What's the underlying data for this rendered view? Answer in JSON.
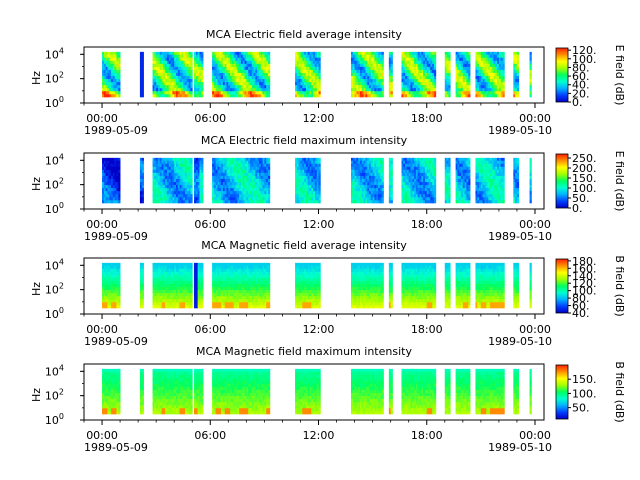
{
  "figure": {
    "panels": [
      {
        "title": "MCA  Electric field average intensity",
        "ylabel": "Hz",
        "cbar_label": "E field (dB)",
        "cbar_ticks": [
          "0.",
          "20.",
          "40.",
          "60.",
          "80.",
          "100.",
          "120."
        ],
        "cbar_range": [
          0,
          125
        ],
        "variant": "e_avg"
      },
      {
        "title": "MCA  Electric field maximum intensity",
        "ylabel": "Hz",
        "cbar_label": "E field (dB)",
        "cbar_ticks": [
          "0.",
          "50.",
          "100.",
          "150.",
          "200.",
          "250."
        ],
        "cbar_range": [
          0,
          270
        ],
        "variant": "e_max"
      },
      {
        "title": "MCA  Magnetic field average intensity",
        "ylabel": "Hz",
        "cbar_label": "B field (dB)",
        "cbar_ticks": [
          "40.",
          "60.",
          "80.",
          "100.",
          "120.",
          "140.",
          "160.",
          "180."
        ],
        "cbar_range": [
          40,
          185
        ],
        "variant": "b_avg"
      },
      {
        "title": "MCA  Magnetic field maximum intensity",
        "ylabel": "Hz",
        "cbar_label": "B field (dB)",
        "cbar_ticks": [
          "50.",
          "100.",
          "150."
        ],
        "cbar_range": [
          10,
          200
        ],
        "variant": "b_max"
      }
    ],
    "x_ticks": [
      "00:00",
      "06:00",
      "12:00",
      "18:00",
      "00:00"
    ],
    "x_tick_hours": [
      0,
      6,
      12,
      18,
      24
    ],
    "x_range_hours": [
      -1,
      24.5
    ],
    "date_left": "1989-05-09",
    "date_right": "1989-05-10",
    "y_ticks": [
      {
        "base": "10",
        "exp": "0"
      },
      {
        "base": "10",
        "exp": "2"
      },
      {
        "base": "10",
        "exp": "4"
      }
    ],
    "y_range_log": [
      0,
      4.6
    ],
    "data_segments_hours": [
      [
        0.0,
        1.0
      ],
      [
        2.1,
        2.3
      ],
      [
        2.8,
        5.0
      ],
      [
        5.1,
        5.6
      ],
      [
        6.1,
        9.3
      ],
      [
        10.7,
        12.1
      ],
      [
        13.8,
        15.6
      ],
      [
        15.9,
        16.1
      ],
      [
        16.6,
        18.5
      ],
      [
        19.0,
        19.3
      ],
      [
        19.6,
        20.4
      ],
      [
        20.7,
        22.3
      ],
      [
        22.8,
        23.1
      ],
      [
        23.7,
        23.8
      ]
    ],
    "data_freq_range_log": [
      0.5,
      4.2
    ],
    "colormap": [
      "#0000c8",
      "#0040ff",
      "#00b0ff",
      "#00ffd0",
      "#00ff60",
      "#a0ff00",
      "#ffff00",
      "#ff9000",
      "#ff2000"
    ]
  }
}
